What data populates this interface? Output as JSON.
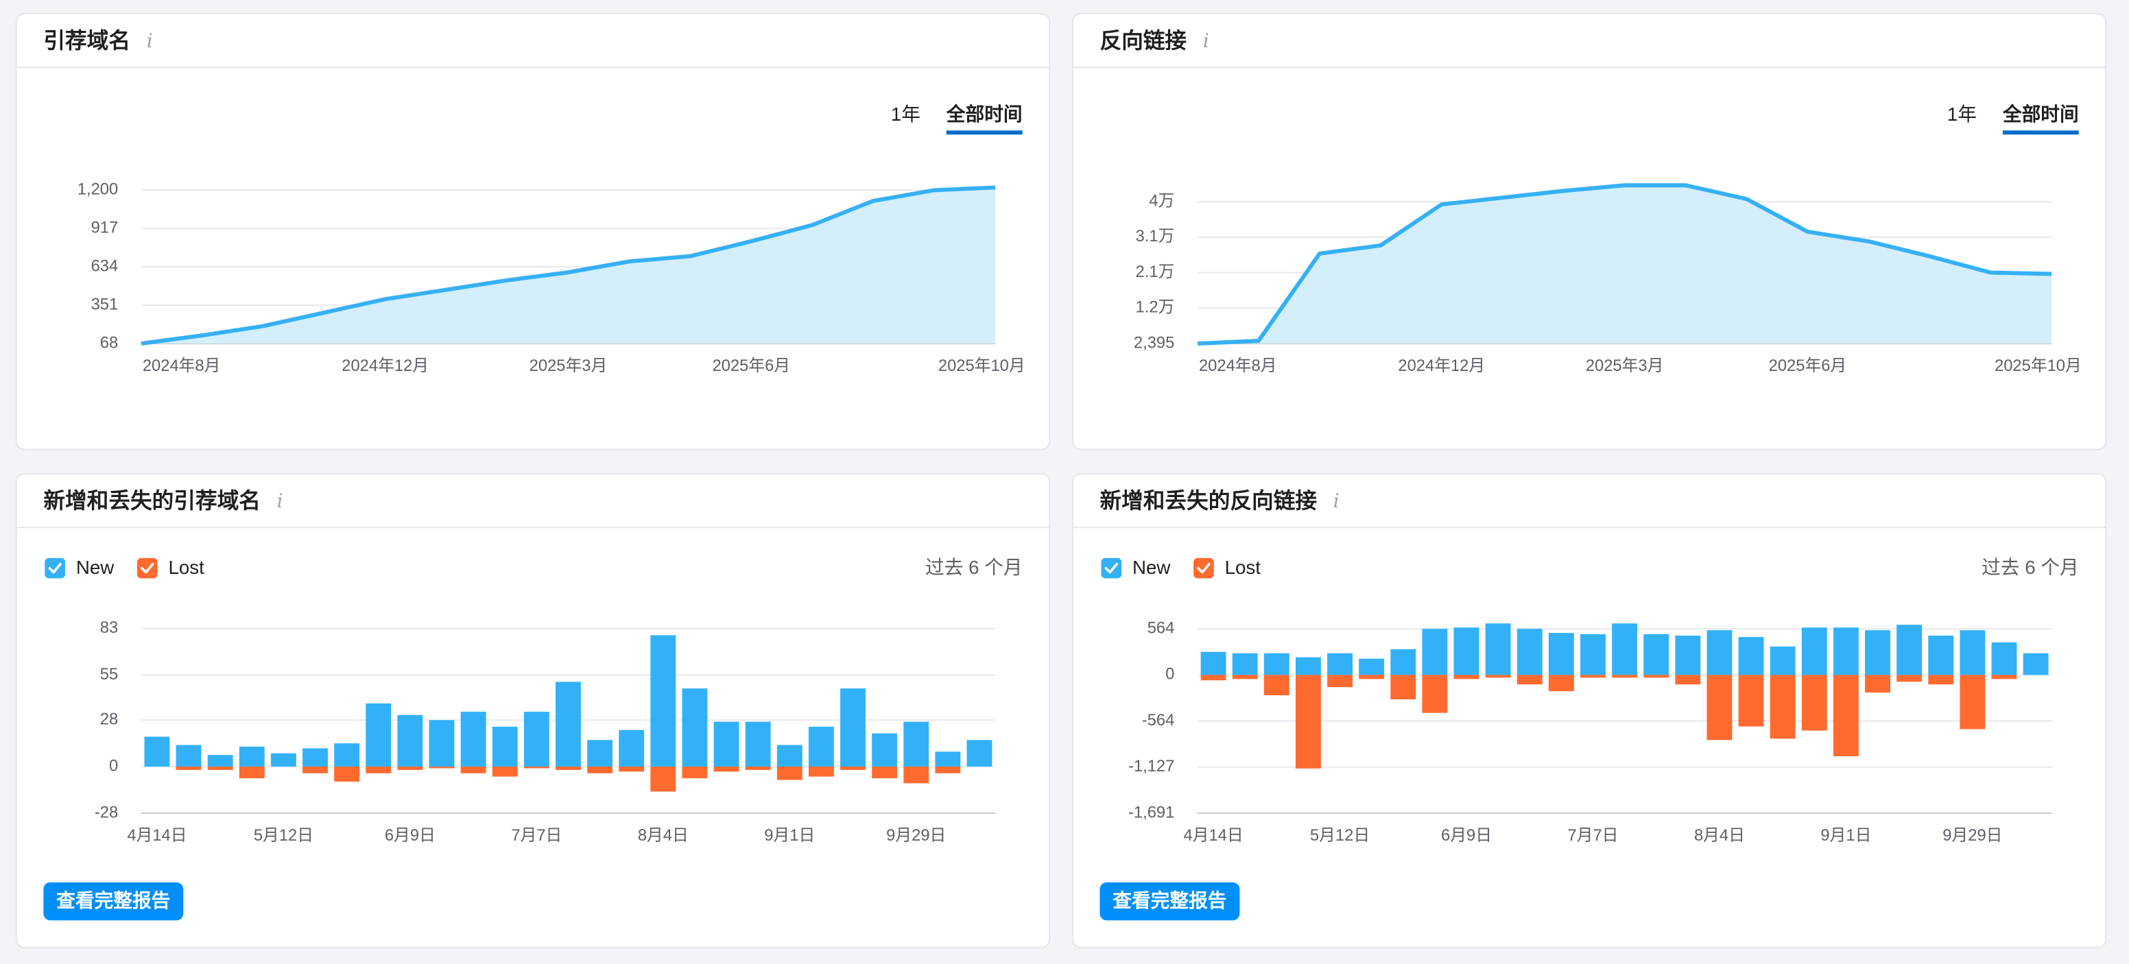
{
  "chart_data": [
    {
      "type": "area",
      "title": "引荐域名",
      "range_options": [
        "1年",
        "全部时间"
      ],
      "categories": [
        "2024年8月",
        null,
        null,
        null,
        "2024年12月",
        null,
        null,
        "2025年3月",
        null,
        null,
        "2025年6月",
        null,
        null,
        null,
        "2025年10月"
      ],
      "values": [
        68,
        128,
        197,
        296,
        396,
        465,
        535,
        594,
        674,
        713,
        823,
        942,
        1121,
        1200,
        1220
      ],
      "color": "#36b0f5",
      "fill": "#d4eefb",
      "ylim": [
        68,
        1240
      ],
      "yticks": [
        68,
        351,
        634,
        917,
        {
          "value": 1200,
          "label": "1,200"
        }
      ],
      "grid": true
    },
    {
      "type": "area",
      "title": "反向链接",
      "range_options": [
        "1年",
        "全部时间"
      ],
      "categories": [
        "2024年8月",
        null,
        null,
        null,
        "2024年12月",
        null,
        null,
        "2025年3月",
        null,
        null,
        "2025年6月",
        null,
        null,
        null,
        "2025年10月"
      ],
      "values": [
        2395,
        3100,
        26260,
        28430,
        39280,
        41085,
        42890,
        44340,
        44340,
        40720,
        32050,
        29510,
        25540,
        21200,
        20840
      ],
      "color": "#36b0f5",
      "fill": "#d4eefb",
      "ylim": [
        2395,
        44500
      ],
      "yticks": [
        {
          "value": 2395,
          "label": "2,395"
        },
        {
          "value": 11796,
          "label": "1.2万"
        },
        {
          "value": 21197,
          "label": "2.1万"
        },
        {
          "value": 30598,
          "label": "3.1万"
        },
        {
          "value": 40000,
          "label": "4万"
        }
      ],
      "grid": true
    },
    {
      "type": "bar",
      "title": "新增和丢失的引荐域名",
      "period": "过去 6 个月",
      "button": "查看完整报告",
      "categories": [
        "4月14日",
        null,
        null,
        null,
        "5月12日",
        null,
        null,
        null,
        "6月9日",
        null,
        null,
        null,
        "7月7日",
        null,
        null,
        null,
        "8月4日",
        null,
        null,
        null,
        "9月1日",
        null,
        null,
        null,
        "9月29日",
        null,
        null
      ],
      "series": [
        {
          "name": "New",
          "color": "#33b1f8",
          "values": [
            18,
            13,
            7,
            12,
            8,
            11,
            14,
            38,
            31,
            28,
            33,
            24,
            33,
            51,
            16,
            22,
            79,
            47,
            27,
            27,
            13,
            24,
            47,
            20,
            27,
            9,
            16
          ]
        },
        {
          "name": "Lost",
          "color": "#ff6a2f",
          "values": [
            0,
            -2,
            -2,
            -7,
            0,
            -4,
            -9,
            -4,
            -2,
            -1,
            -4,
            -6,
            -1,
            -2,
            -4,
            -3,
            -15,
            -7,
            -3,
            -2,
            -8,
            -6,
            -2,
            -7,
            -10,
            -4,
            0
          ]
        }
      ],
      "ylim": [
        -28,
        83
      ],
      "yticks": [
        -28,
        0,
        28,
        55,
        83
      ],
      "grid": true
    },
    {
      "type": "bar",
      "title": "新增和丢失的反向链接",
      "period": "过去 6 个月",
      "button": "查看完整报告",
      "categories": [
        "4月14日",
        null,
        null,
        null,
        "5月12日",
        null,
        null,
        null,
        "6月9日",
        null,
        null,
        null,
        "7月7日",
        null,
        null,
        null,
        "8月4日",
        null,
        null,
        null,
        "9月1日",
        null,
        null,
        null,
        "9月29日",
        null,
        null
      ],
      "series": [
        {
          "name": "New",
          "color": "#33b1f8",
          "values": [
            282,
            265,
            265,
            216,
            265,
            199,
            315,
            564,
            580,
            630,
            564,
            514,
            498,
            630,
            498,
            481,
            547,
            464,
            348,
            580,
            580,
            547,
            614,
            481,
            547,
            398,
            265
          ]
        },
        {
          "name": "Lost",
          "color": "#ff6a2f",
          "values": [
            -66,
            -50,
            -249,
            -1144,
            -149,
            -50,
            -299,
            -464,
            -50,
            -33,
            -116,
            -199,
            -33,
            -33,
            -33,
            -116,
            -796,
            -630,
            -779,
            -680,
            -995,
            -216,
            -83,
            -116,
            -663,
            -50,
            0
          ]
        }
      ],
      "ylim": [
        -1691,
        650
      ],
      "yticks": [
        {
          "value": -1691,
          "label": "-1,691"
        },
        {
          "value": -1127,
          "label": "-1,127"
        },
        -564,
        0,
        564
      ],
      "grid": true
    }
  ]
}
